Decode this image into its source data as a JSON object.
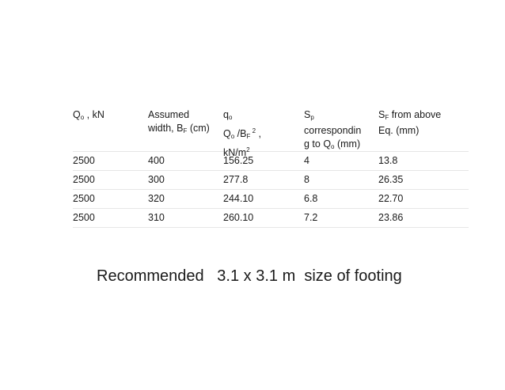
{
  "table": {
    "headers": [
      [
        {
          "t": "Q"
        },
        {
          "t": "o",
          "sub": true
        },
        {
          "t": " ,   kN"
        }
      ],
      [
        {
          "t": "Assumed"
        },
        {
          "br": true
        },
        {
          "t": "width, B"
        },
        {
          "t": "F",
          "sub": true
        },
        {
          "t": " (cm)"
        }
      ],
      [
        {
          "t": "q"
        },
        {
          "t": "o",
          "sub": true
        },
        {
          "br": true
        },
        {
          "t": "Q"
        },
        {
          "t": "o",
          "sub": true
        },
        {
          "t": " /B"
        },
        {
          "t": "F",
          "sub": true
        },
        {
          "t": " 2",
          "sup": true
        },
        {
          "t": " ,"
        },
        {
          "br": true
        },
        {
          "t": "kN/m"
        },
        {
          "t": "2",
          "sup": true
        }
      ],
      [
        {
          "t": "S"
        },
        {
          "t": "p",
          "sub": true
        },
        {
          "br": true
        },
        {
          "t": "correspondin"
        },
        {
          "br": true
        },
        {
          "t": "g to Q"
        },
        {
          "t": "o",
          "sub": true
        },
        {
          "t": "  (mm)"
        }
      ],
      [
        {
          "t": "S"
        },
        {
          "t": "F",
          "sub": true
        },
        {
          "t": " from above"
        },
        {
          "br": true
        },
        {
          "t": "Eq. (mm)"
        }
      ]
    ],
    "rows": [
      [
        "2500",
        "400",
        "156.25",
        "4",
        "13.8"
      ],
      [
        "2500",
        "300",
        "277.8",
        "8",
        "26.35"
      ],
      [
        "2500",
        "320",
        "244.10",
        "6.8",
        "22.70"
      ],
      [
        "2500",
        "310",
        "260.10",
        "7.2",
        "23.86"
      ]
    ]
  },
  "footer": {
    "text": "Recommended   3.1 x 3.1 m  size of footing"
  }
}
